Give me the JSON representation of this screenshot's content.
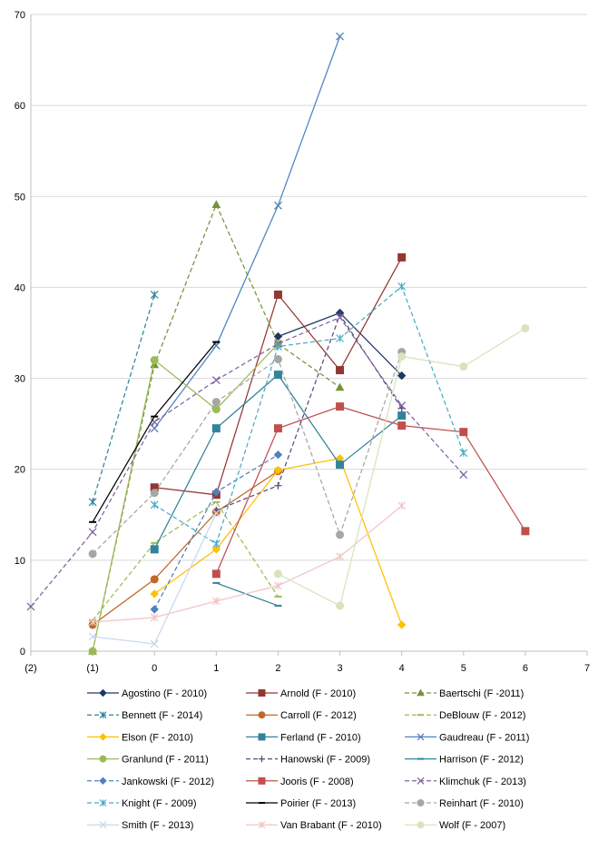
{
  "chart_data": {
    "type": "line",
    "xlim": [
      -2,
      7
    ],
    "ylim": [
      0,
      70
    ],
    "x_ticks": [
      -2,
      -1,
      0,
      1,
      2,
      3,
      4,
      5,
      6,
      7
    ],
    "x_tick_labels": [
      "(2)",
      "(1)",
      "0",
      "1",
      "2",
      "3",
      "4",
      "5",
      "6",
      "7"
    ],
    "y_ticks": [
      0,
      10,
      20,
      30,
      40,
      50,
      60,
      70
    ],
    "y_tick_labels": [
      "0",
      "10",
      "20",
      "30",
      "40",
      "50",
      "60",
      "70"
    ],
    "grid": "horizontal",
    "legend_position": "bottom",
    "series": [
      {
        "name": "Agostino (F - 2010)",
        "color": "#1f3864",
        "dash": "solid",
        "marker": "diamond",
        "points": [
          [
            2,
            34.6
          ],
          [
            3,
            37.2
          ],
          [
            4,
            30.3
          ]
        ]
      },
      {
        "name": "Arnold (F - 2010)",
        "color": "#943634",
        "dash": "solid",
        "marker": "square",
        "points": [
          [
            0,
            18.0
          ],
          [
            1,
            17.2
          ],
          [
            2,
            39.2
          ],
          [
            3,
            30.9
          ],
          [
            4,
            43.3
          ]
        ]
      },
      {
        "name": "Baertschi (F -2011)",
        "color": "#76923c",
        "dash": "dash",
        "marker": "triangle",
        "points": [
          [
            -1,
            0.0
          ],
          [
            0,
            31.5
          ],
          [
            1,
            49.1
          ],
          [
            2,
            33.8
          ],
          [
            3,
            29.0
          ]
        ]
      },
      {
        "name": "Bennett (F - 2014)",
        "color": "#31849b",
        "dash": "dash",
        "marker": "asterisk",
        "points": [
          [
            -1,
            16.4
          ],
          [
            0,
            39.2
          ]
        ]
      },
      {
        "name": "Carroll (F - 2012)",
        "color": "#c0682a",
        "dash": "solid",
        "marker": "circle",
        "points": [
          [
            -1,
            2.9
          ],
          [
            0,
            7.9
          ],
          [
            1,
            15.3
          ],
          [
            2,
            19.8
          ]
        ]
      },
      {
        "name": "DeBlouw (F - 2012)",
        "color": "#9bbb59",
        "dash": "dash",
        "marker": "dash",
        "points": [
          [
            -1,
            3.4
          ],
          [
            0,
            11.9
          ],
          [
            1,
            16.4
          ],
          [
            2,
            6.0
          ]
        ]
      },
      {
        "name": "Elson (F - 2010)",
        "color": "#ffc000",
        "dash": "solid",
        "marker": "diamond",
        "points": [
          [
            0,
            6.3
          ],
          [
            1,
            11.2
          ],
          [
            2,
            19.9
          ],
          [
            3,
            21.2
          ],
          [
            4,
            2.9
          ]
        ]
      },
      {
        "name": "Ferland (F - 2010)",
        "color": "#31849b",
        "dash": "solid",
        "marker": "square",
        "points": [
          [
            0,
            11.2
          ],
          [
            1,
            24.5
          ],
          [
            2,
            30.4
          ],
          [
            3,
            20.5
          ],
          [
            4,
            25.9
          ]
        ]
      },
      {
        "name": "Gaudreau (F - 2011)",
        "color": "#4f81bd",
        "dash": "solid",
        "marker": "x",
        "points": [
          [
            0,
            24.5
          ],
          [
            1,
            33.6
          ],
          [
            2,
            49.0
          ],
          [
            3,
            67.6
          ]
        ]
      },
      {
        "name": "Granlund (F - 2011)",
        "color": "#9bbb59",
        "dash": "solid",
        "marker": "circle",
        "points": [
          [
            -1,
            0.0
          ],
          [
            0,
            32.0
          ],
          [
            1,
            26.6
          ],
          [
            2,
            33.8
          ]
        ]
      },
      {
        "name": "Hanowski (F - 2009)",
        "color": "#604a7b",
        "dash": "dash",
        "marker": "plus",
        "points": [
          [
            1,
            15.5
          ],
          [
            2,
            18.2
          ],
          [
            3,
            37.0
          ],
          [
            4,
            26.7
          ]
        ]
      },
      {
        "name": "Harrison (F - 2012)",
        "color": "#31849b",
        "dash": "solid",
        "marker": "dash",
        "points": [
          [
            1,
            7.5
          ],
          [
            2,
            5.0
          ]
        ]
      },
      {
        "name": "Jankowski (F - 2012)",
        "color": "#4f81bd",
        "dash": "dash",
        "marker": "diamond",
        "points": [
          [
            0,
            4.6
          ],
          [
            1,
            17.5
          ],
          [
            2,
            21.6
          ]
        ]
      },
      {
        "name": "Jooris (F - 2008)",
        "color": "#c0504d",
        "dash": "solid",
        "marker": "square",
        "points": [
          [
            1,
            8.5
          ],
          [
            2,
            24.5
          ],
          [
            3,
            26.9
          ],
          [
            4,
            24.8
          ],
          [
            5,
            24.1
          ],
          [
            6,
            13.2
          ]
        ]
      },
      {
        "name": "Klimchuk (F - 2013)",
        "color": "#8064a2",
        "dash": "dash",
        "marker": "x",
        "points": [
          [
            -2,
            4.9
          ],
          [
            -1,
            13.1
          ],
          [
            0,
            25.2
          ],
          [
            1,
            29.8
          ],
          [
            2,
            33.8
          ],
          [
            3,
            36.7
          ],
          [
            4,
            27.0
          ],
          [
            5,
            19.4
          ]
        ]
      },
      {
        "name": "Knight (F - 2009)",
        "color": "#4bacc6",
        "dash": "dash",
        "marker": "asterisk",
        "points": [
          [
            0,
            16.1
          ],
          [
            1,
            11.8
          ],
          [
            2,
            33.5
          ],
          [
            3,
            34.4
          ],
          [
            4,
            40.1
          ],
          [
            5,
            21.8
          ]
        ]
      },
      {
        "name": "Poirier (F - 2013)",
        "color": "#000000",
        "dash": "solid",
        "marker": "dash",
        "points": [
          [
            -1,
            14.2
          ],
          [
            0,
            25.8
          ],
          [
            1,
            34.0
          ]
        ]
      },
      {
        "name": "Reinhart (F - 2010)",
        "color": "#a6a6a6",
        "dash": "dash",
        "marker": "circle",
        "points": [
          [
            -1,
            10.7
          ],
          [
            0,
            17.4
          ],
          [
            1,
            27.4
          ],
          [
            2,
            32.1
          ],
          [
            3,
            12.8
          ],
          [
            4,
            32.9
          ]
        ]
      },
      {
        "name": "Smith (F - 2013)",
        "color": "#c6d9f1",
        "dash": "solid",
        "marker": "x",
        "points": [
          [
            -1,
            1.6
          ],
          [
            0,
            0.8
          ],
          [
            1,
            15.2
          ]
        ]
      },
      {
        "name": "Van Brabant (F - 2010)",
        "color": "#f2c4c4",
        "dash": "solid",
        "marker": "asterisk",
        "points": [
          [
            -1,
            3.2
          ],
          [
            0,
            3.7
          ],
          [
            1,
            5.5
          ],
          [
            2,
            7.2
          ],
          [
            3,
            10.4
          ],
          [
            4,
            16.0
          ]
        ]
      },
      {
        "name": "Wolf (F - 2007)",
        "color": "#d7e4bd",
        "dash": "solid",
        "marker": "circle",
        "points": [
          [
            2,
            8.5
          ],
          [
            3,
            5.0
          ],
          [
            4,
            32.4
          ],
          [
            5,
            31.3
          ],
          [
            6,
            35.5
          ]
        ]
      }
    ]
  }
}
